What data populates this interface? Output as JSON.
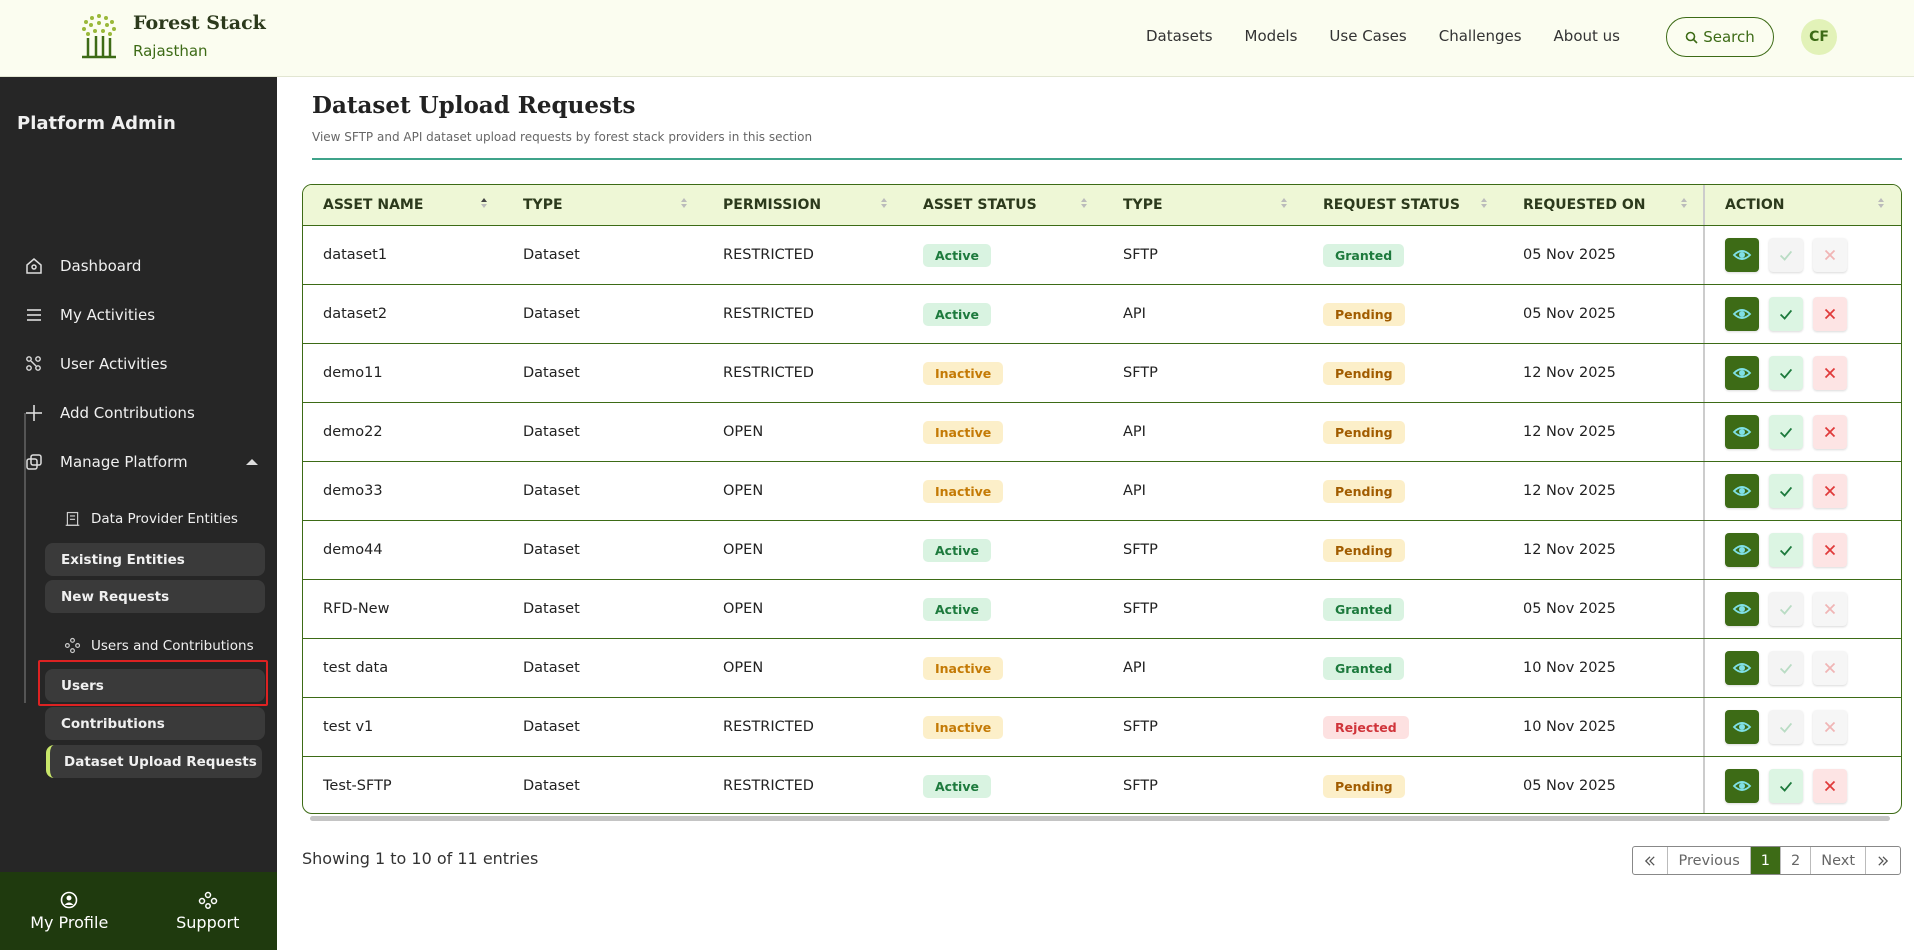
{
  "header": {
    "brand": "Forest Stack",
    "region": "Rajasthan",
    "nav": [
      "Datasets",
      "Models",
      "Use Cases",
      "Challenges",
      "About us"
    ],
    "search": "Search",
    "avatar": "CF"
  },
  "sidebar": {
    "title": "Platform Admin",
    "items": [
      "Dashboard",
      "My Activities",
      "User Activities",
      "Add Contributions",
      "Manage Platform"
    ],
    "groups": [
      {
        "label": "Data Provider Entities",
        "links": [
          {
            "label": "Existing Entities",
            "active": false
          },
          {
            "label": "New Requests",
            "active": false
          }
        ]
      },
      {
        "label": "Users and Contributions",
        "links": [
          {
            "label": "Users",
            "active": false
          },
          {
            "label": "Contributions",
            "active": false
          },
          {
            "label": "Dataset Upload Requests",
            "active": true
          }
        ]
      }
    ],
    "footer": [
      "My Profile",
      "Support"
    ]
  },
  "page": {
    "title": "Dataset Upload Requests",
    "description": "View SFTP and API dataset upload requests by forest stack providers in this section"
  },
  "table": {
    "columns": [
      "ASSET NAME",
      "TYPE",
      "PERMISSION",
      "ASSET STATUS",
      "TYPE",
      "REQUEST STATUS",
      "REQUESTED ON",
      "ACTION"
    ],
    "badge_columns": [
      3,
      5
    ],
    "badge_colors": {
      "Active": {
        "bg": "#d9f3e1",
        "fg": "#1d7a3d"
      },
      "Inactive": {
        "bg": "#fcefc9",
        "fg": "#c47a05"
      },
      "Granted": {
        "bg": "#d9f3e1",
        "fg": "#1d7a3d"
      },
      "Pending": {
        "bg": "#fcefc9",
        "fg": "#a15c00"
      },
      "Rejected": {
        "bg": "#fde1e1",
        "fg": "#d0343a"
      }
    },
    "rows": [
      {
        "cells": [
          "dataset1",
          "Dataset",
          "RESTRICTED",
          "Active",
          "SFTP",
          "Granted",
          "05 Nov 2025"
        ],
        "actions_enabled": false
      },
      {
        "cells": [
          "dataset2",
          "Dataset",
          "RESTRICTED",
          "Active",
          "API",
          "Pending",
          "05 Nov 2025"
        ],
        "actions_enabled": true
      },
      {
        "cells": [
          "demo11",
          "Dataset",
          "RESTRICTED",
          "Inactive",
          "SFTP",
          "Pending",
          "12 Nov 2025"
        ],
        "actions_enabled": true
      },
      {
        "cells": [
          "demo22",
          "Dataset",
          "OPEN",
          "Inactive",
          "API",
          "Pending",
          "12 Nov 2025"
        ],
        "actions_enabled": true
      },
      {
        "cells": [
          "demo33",
          "Dataset",
          "OPEN",
          "Inactive",
          "API",
          "Pending",
          "12 Nov 2025"
        ],
        "actions_enabled": true
      },
      {
        "cells": [
          "demo44",
          "Dataset",
          "OPEN",
          "Active",
          "SFTP",
          "Pending",
          "12 Nov 2025"
        ],
        "actions_enabled": true
      },
      {
        "cells": [
          "RFD-New",
          "Dataset",
          "OPEN",
          "Active",
          "SFTP",
          "Granted",
          "05 Nov 2025"
        ],
        "actions_enabled": false
      },
      {
        "cells": [
          "test data",
          "Dataset",
          "OPEN",
          "Inactive",
          "API",
          "Granted",
          "10 Nov 2025"
        ],
        "actions_enabled": false
      },
      {
        "cells": [
          "test v1",
          "Dataset",
          "RESTRICTED",
          "Inactive",
          "SFTP",
          "Rejected",
          "10 Nov 2025"
        ],
        "actions_enabled": false
      },
      {
        "cells": [
          "Test-SFTP",
          "Dataset",
          "RESTRICTED",
          "Active",
          "SFTP",
          "Pending",
          "05 Nov 2025"
        ],
        "actions_enabled": true
      }
    ]
  },
  "pagination": {
    "summary": "Showing 1 to 10 of 11 entries",
    "previous": "Previous",
    "pages": [
      1,
      2
    ],
    "current": 1,
    "next": "Next"
  }
}
